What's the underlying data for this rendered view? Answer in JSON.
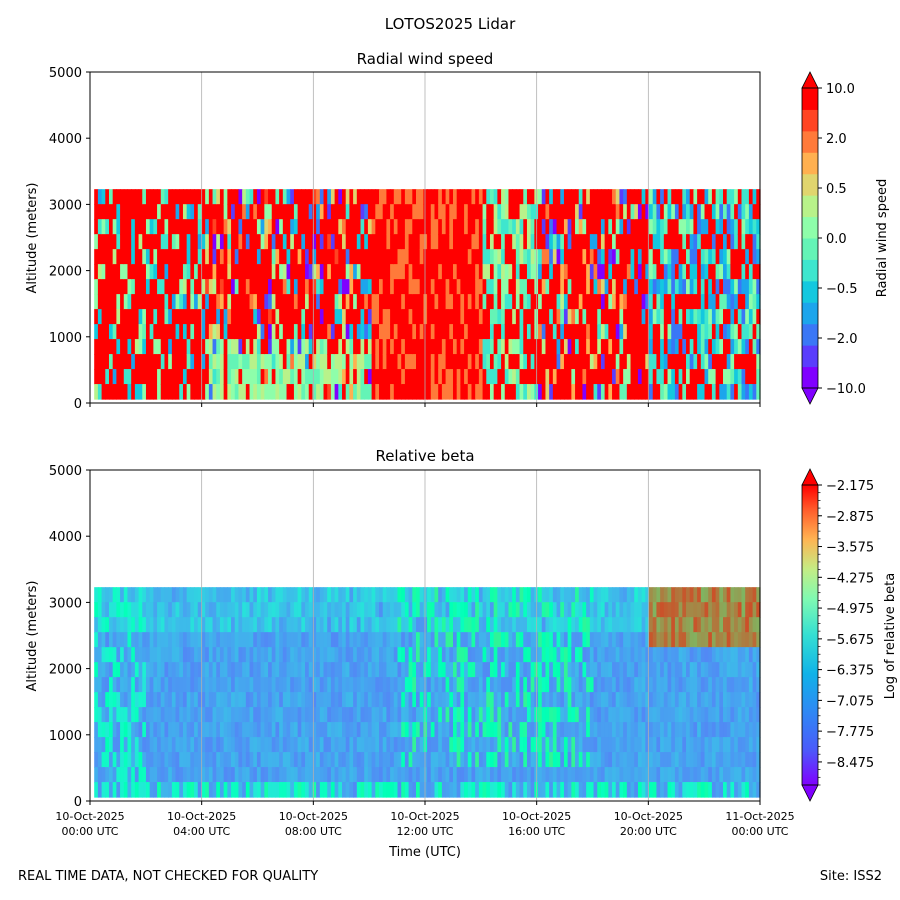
{
  "figure": {
    "suptitle": "LOTOS2025 Lidar",
    "footer_left": "REAL TIME DATA, NOT CHECKED FOR QUALITY",
    "footer_right": "Site: ISS2"
  },
  "chart_data": [
    {
      "type": "heatmap",
      "title": "Radial wind speed",
      "xlabel": "",
      "ylabel": "Altitude (meters)",
      "xlim": [
        0,
        24
      ],
      "ylim": [
        0,
        5000
      ],
      "data_top_altitude": 3230,
      "y_ticks": [
        0,
        1000,
        2000,
        3000,
        4000,
        5000
      ],
      "x_ticks_hours": [
        0,
        4,
        8,
        12,
        16,
        20,
        24
      ],
      "grid": "vertical",
      "colorbar": {
        "label": "Radial wind speed",
        "tick_labels": [
          "10.0",
          "2.0",
          "0.5",
          "0.0",
          "−0.5",
          "−2.0",
          "−10.0"
        ],
        "colors": [
          "#8000ff",
          "#5a3dfd",
          "#3a77f6",
          "#1ca5ec",
          "#14c8df",
          "#3ee6ce",
          "#64f4b6",
          "#8efeaa",
          "#b8f28a",
          "#e0d56e",
          "#ffb050",
          "#ff7a3a",
          "#ff4422",
          "#ff0000"
        ],
        "extend": "both"
      }
    },
    {
      "type": "heatmap",
      "title": "Relative beta",
      "xlabel": "Time (UTC)",
      "ylabel": "Altitude (meters)",
      "xlim": [
        0,
        24
      ],
      "ylim": [
        0,
        5000
      ],
      "data_top_altitude": 3230,
      "y_ticks": [
        0,
        1000,
        2000,
        3000,
        4000,
        5000
      ],
      "x_ticks_hours": [
        0,
        4,
        8,
        12,
        16,
        20,
        24
      ],
      "x_tick_labels": [
        [
          "10-Oct-2025",
          "00:00 UTC"
        ],
        [
          "10-Oct-2025",
          "04:00 UTC"
        ],
        [
          "10-Oct-2025",
          "08:00 UTC"
        ],
        [
          "10-Oct-2025",
          "12:00 UTC"
        ],
        [
          "10-Oct-2025",
          "16:00 UTC"
        ],
        [
          "10-Oct-2025",
          "20:00 UTC"
        ],
        [
          "11-Oct-2025",
          "00:00 UTC"
        ]
      ],
      "grid": "vertical",
      "colorbar": {
        "label": "Log of relative beta",
        "tick_labels": [
          "−2.175",
          "−2.875",
          "−3.575",
          "−4.275",
          "−4.975",
          "−5.675",
          "−6.375",
          "−7.075",
          "−7.775",
          "−8.475"
        ],
        "vmin": -9.0,
        "vmax": -2.175,
        "extend": "both"
      }
    }
  ]
}
